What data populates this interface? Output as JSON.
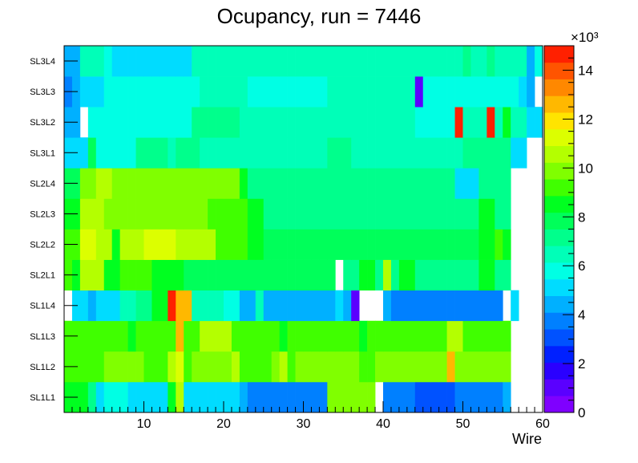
{
  "chart_data": {
    "type": "heatmap",
    "title": "Ocupancy, run = 7446",
    "xlabel": "Wire",
    "ylabel": "",
    "x_range": [
      0,
      60
    ],
    "x_ticks": [
      10,
      20,
      30,
      40,
      50,
      60
    ],
    "y_categories": [
      "SL1L1",
      "SL1L2",
      "SL1L3",
      "SL1L4",
      "SL2L1",
      "SL2L2",
      "SL2L3",
      "SL2L4",
      "SL3L1",
      "SL3L2",
      "SL3L3",
      "SL3L4"
    ],
    "z_range": [
      0,
      15000
    ],
    "z_ticks": [
      0,
      2,
      4,
      6,
      8,
      10,
      12,
      14
    ],
    "z_multiplier_label": "×10³",
    "palette": [
      "#7f00ff",
      "#5a00ff",
      "#2a00ff",
      "#0020ff",
      "#0052ff",
      "#0080ff",
      "#00b0ff",
      "#00dcff",
      "#00ffe4",
      "#00ffb8",
      "#00ff8c",
      "#00ff5a",
      "#00ff20",
      "#40ff00",
      "#80ff00",
      "#b4ff00",
      "#dcff00",
      "#ffe400",
      "#ffb800",
      "#ff8800",
      "#ff5400",
      "#ff2000"
    ],
    "rows": {
      "SL1L1": [
        8200,
        8200,
        8200,
        7000,
        5300,
        5900,
        5900,
        5900,
        5300,
        5300,
        5300,
        5300,
        5300,
        8500,
        10400,
        5300,
        5300,
        5300,
        5300,
        5300,
        5300,
        5300,
        4600,
        3800,
        3800,
        3800,
        3800,
        3800,
        3800,
        3800,
        3800,
        3800,
        3800,
        9800,
        9800,
        9800,
        9800,
        9800,
        9800,
        0,
        3800,
        3800,
        3800,
        3800,
        3200,
        3200,
        3200,
        3200,
        3200,
        3800,
        3800,
        3800,
        3800,
        3800,
        3800,
        4600,
        0,
        0,
        0,
        0
      ],
      "SL1L2": [
        9400,
        9400,
        9400,
        9400,
        9400,
        9800,
        9800,
        9800,
        9800,
        9800,
        9000,
        9000,
        9400,
        10300,
        11200,
        9000,
        9800,
        9800,
        9800,
        10200,
        10200,
        10300,
        9000,
        9000,
        9000,
        9000,
        9800,
        10300,
        9000,
        9800,
        9800,
        9800,
        9800,
        9800,
        9800,
        9800,
        9800,
        9000,
        9000,
        9800,
        9800,
        9800,
        9800,
        9800,
        9800,
        9800,
        9800,
        9800,
        12600,
        9800,
        9800,
        9800,
        9800,
        9800,
        9800,
        9800,
        0,
        0,
        0,
        0
      ],
      "SL1L3": [
        9400,
        9400,
        9400,
        9400,
        9400,
        9400,
        9400,
        9400,
        8800,
        9400,
        9400,
        9400,
        9400,
        9400,
        12600,
        9400,
        9400,
        10400,
        10400,
        10400,
        10400,
        9400,
        9400,
        9400,
        9400,
        9400,
        9400,
        8800,
        9400,
        9400,
        9400,
        9400,
        9400,
        9400,
        9400,
        9400,
        9400,
        8800,
        9400,
        9400,
        9400,
        9400,
        9400,
        9400,
        9400,
        9400,
        9400,
        9400,
        10400,
        10400,
        9400,
        9400,
        9400,
        9400,
        9400,
        9400,
        0,
        0,
        0,
        0
      ],
      "SL1L4": [
        0,
        5300,
        5300,
        4600,
        5300,
        5300,
        5300,
        6300,
        6300,
        7400,
        7400,
        8200,
        8200,
        14500,
        12600,
        12600,
        6800,
        6800,
        6800,
        6800,
        5600,
        5600,
        4700,
        4700,
        6200,
        4700,
        4700,
        4700,
        4700,
        4700,
        4700,
        4700,
        4200,
        4200,
        5000,
        4200,
        700,
        0,
        0,
        0,
        4200,
        3500,
        3500,
        3500,
        3500,
        3500,
        3500,
        3500,
        3500,
        3500,
        3500,
        3500,
        3500,
        3500,
        3500,
        0,
        5000,
        0,
        0,
        0
      ],
      "SL2L1": [
        9000,
        8800,
        10900,
        10900,
        10900,
        8700,
        8700,
        9000,
        9000,
        9000,
        9000,
        8700,
        8700,
        8700,
        8700,
        7800,
        7800,
        7800,
        7800,
        7800,
        7800,
        7800,
        7800,
        7800,
        7800,
        7800,
        7800,
        7800,
        7800,
        7800,
        7800,
        7800,
        7800,
        7800,
        0,
        7100,
        7100,
        8400,
        8400,
        7400,
        10900,
        7400,
        8400,
        8400,
        7400,
        7400,
        7400,
        7400,
        7400,
        7400,
        7400,
        7400,
        8400,
        8400,
        7400,
        7400,
        0,
        0,
        0,
        0
      ],
      "SL2L2": [
        9000,
        9000,
        11000,
        11000,
        10400,
        10400,
        8800,
        10400,
        10400,
        10400,
        11000,
        11000,
        11000,
        11000,
        10400,
        10400,
        10400,
        10400,
        10400,
        9400,
        9400,
        9400,
        9400,
        8700,
        8700,
        7800,
        7800,
        7800,
        7800,
        7800,
        7800,
        7800,
        7800,
        7800,
        7800,
        7800,
        7800,
        8000,
        8000,
        8000,
        8000,
        8000,
        8000,
        8000,
        8000,
        8000,
        7800,
        7800,
        7800,
        7800,
        7800,
        7800,
        8400,
        8400,
        9400,
        8400,
        0,
        0,
        0,
        0
      ],
      "SL2L3": [
        8800,
        8800,
        10400,
        10400,
        10400,
        9800,
        9800,
        9800,
        9800,
        9800,
        9800,
        9800,
        9800,
        9800,
        9800,
        9800,
        9800,
        9800,
        9400,
        9400,
        9400,
        9400,
        9400,
        8200,
        8200,
        7400,
        7400,
        7400,
        7400,
        7400,
        7400,
        7400,
        6900,
        6900,
        6900,
        6900,
        6900,
        6900,
        6900,
        6900,
        6900,
        6900,
        6900,
        6900,
        6900,
        6900,
        6900,
        6900,
        6900,
        6900,
        6900,
        6900,
        8200,
        8200,
        7400,
        7400,
        0,
        0,
        0,
        0
      ],
      "SL2L4": [
        8100,
        8100,
        9800,
        9800,
        10400,
        10400,
        9800,
        9800,
        9800,
        9800,
        9800,
        9800,
        9800,
        9800,
        9800,
        9800,
        9800,
        9800,
        9800,
        9800,
        9800,
        9800,
        8800,
        7400,
        7400,
        7400,
        7400,
        7400,
        7400,
        7400,
        7400,
        7400,
        7400,
        7400,
        7400,
        7400,
        7400,
        7400,
        7400,
        7400,
        7400,
        7400,
        7400,
        7400,
        7400,
        7400,
        7400,
        7400,
        7400,
        5300,
        5300,
        5300,
        7400,
        7400,
        7400,
        7400,
        0,
        0,
        0,
        0
      ],
      "SL3L1": [
        4900,
        4900,
        4900,
        7800,
        5800,
        5800,
        5800,
        5800,
        5800,
        7400,
        7400,
        7400,
        7400,
        6400,
        7400,
        7400,
        7400,
        6600,
        6600,
        6600,
        6600,
        6600,
        6600,
        6600,
        6600,
        6600,
        6600,
        6600,
        6600,
        6600,
        6600,
        6600,
        6600,
        7400,
        7400,
        7400,
        6600,
        6600,
        6600,
        6600,
        6600,
        6600,
        6600,
        6600,
        6600,
        6600,
        6600,
        6600,
        6600,
        6600,
        7400,
        7400,
        7400,
        7400,
        7400,
        7400,
        5300,
        5300,
        0,
        0
      ],
      "SL3L2": [
        4600,
        4600,
        0,
        5800,
        5800,
        5800,
        5800,
        5800,
        5800,
        5800,
        5800,
        5800,
        5800,
        5800,
        5800,
        5800,
        7400,
        7400,
        7400,
        7400,
        7400,
        7400,
        6600,
        6600,
        6600,
        6600,
        6600,
        6600,
        6600,
        6600,
        6600,
        6600,
        6600,
        6600,
        6600,
        6600,
        6600,
        6600,
        6600,
        6600,
        6600,
        6600,
        6600,
        6600,
        5800,
        5800,
        5800,
        5800,
        5800,
        14500,
        6600,
        6600,
        6600,
        14500,
        6600,
        8800,
        6600,
        6600,
        5300,
        5300
      ],
      "SL3L3": [
        3500,
        4600,
        5300,
        5300,
        5300,
        5800,
        5800,
        5800,
        5800,
        5800,
        5800,
        5800,
        5800,
        5800,
        5800,
        5800,
        5800,
        6500,
        6500,
        6500,
        6500,
        6500,
        6500,
        5800,
        5800,
        5800,
        5800,
        5800,
        5800,
        5800,
        5800,
        5800,
        5800,
        6500,
        6500,
        6500,
        6500,
        6500,
        6500,
        6500,
        6500,
        6500,
        6500,
        6500,
        900,
        5800,
        5800,
        5800,
        5800,
        5800,
        5800,
        5800,
        5800,
        5800,
        5800,
        5800,
        5800,
        5300,
        4600,
        0
      ],
      "SL3L4": [
        4600,
        4600,
        6500,
        6500,
        6500,
        5800,
        5300,
        5300,
        5300,
        5300,
        5300,
        5300,
        5300,
        5300,
        5300,
        5300,
        6800,
        6800,
        6800,
        6800,
        6800,
        6300,
        6300,
        6300,
        6300,
        6300,
        6300,
        6300,
        6300,
        6300,
        6300,
        6300,
        6800,
        6800,
        6800,
        6800,
        6300,
        6300,
        6300,
        6300,
        6300,
        6300,
        6300,
        6300,
        6300,
        6300,
        6300,
        6300,
        6300,
        6300,
        7400,
        6500,
        6500,
        7400,
        6500,
        6500,
        6500,
        6500,
        4500,
        5600
      ]
    }
  }
}
